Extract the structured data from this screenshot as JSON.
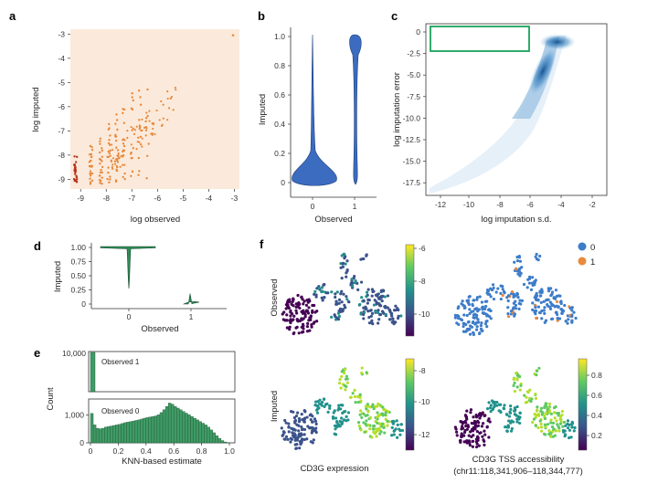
{
  "colors": {
    "scatter_bg": "#fbeadb",
    "scatter_point": "#e8893c",
    "scatter_dark": "#b8331f",
    "violin_fill": "#3b6cc0",
    "violin_edge": "#1f3f7a",
    "violin_green": "#2e8b57",
    "density": "#1f5f9e",
    "green_box": "#1aa35b",
    "hist_green": "#3f9b65",
    "hist_edge": "#1d4d31",
    "cell_blue": "#3d7cc9",
    "cell_orange": "#e8893c"
  },
  "panels": {
    "a": {
      "label": "a",
      "chart_data": {
        "type": "scatter",
        "xlabel": "log observed",
        "ylabel": "log imputed",
        "xlim": [
          -9.4,
          -2.8
        ],
        "ylim": [
          -9.4,
          -2.8
        ],
        "xticks": [
          "-9",
          "-8",
          "-7",
          "-6",
          "-5",
          "-4",
          "-3"
        ],
        "yticks": [
          "-3",
          "-4",
          "-5",
          "-6",
          "-7",
          "-8",
          "-9"
        ]
      }
    },
    "b": {
      "label": "b",
      "chart_data": {
        "type": "violin",
        "xlabel": "Observed",
        "ylabel": "Imputed",
        "categories": [
          "0",
          "1"
        ],
        "ylim": [
          -0.08,
          1.08
        ],
        "yticks": [
          "0",
          "0.2",
          "0.4",
          "0.6",
          "0.8",
          "1.0"
        ]
      }
    },
    "c": {
      "label": "c",
      "chart_data": {
        "type": "heatmap",
        "xlabel": "log imputation s.d.",
        "ylabel": "log imputation error",
        "xticks": [
          "-12",
          "-10",
          "-8",
          "-6",
          "-4",
          "-2"
        ],
        "yticks": [
          "0",
          "-2.5",
          "-5.0",
          "-7.5",
          "-10.0",
          "-12.5",
          "-15.0",
          "-17.5"
        ]
      }
    },
    "d": {
      "label": "d",
      "chart_data": {
        "type": "violin",
        "xlabel": "Observed",
        "ylabel": "Imputed",
        "categories": [
          "0",
          "1"
        ],
        "yticks": [
          "1.00",
          "0.75",
          "0.50",
          "0.25",
          "0"
        ]
      }
    },
    "e": {
      "label": "e",
      "chart_data": {
        "type": "bar",
        "xlabel": "KNN-based estimate",
        "ylabel": "Count",
        "xticks": [
          "0",
          "0.2",
          "0.4",
          "0.6",
          "0.8",
          "1.0"
        ],
        "top": {
          "title": "Observed 1",
          "ytick": "10,000"
        },
        "bottom": {
          "title": "Observed 0",
          "yticks": [
            "1,000",
            "0"
          ],
          "values": [
            1050,
            640,
            520,
            500,
            520,
            560,
            580,
            600,
            620,
            640,
            660,
            690,
            720,
            740,
            760,
            780,
            800,
            820,
            850,
            880,
            900,
            920,
            940,
            960,
            1000,
            1080,
            1180,
            1300,
            1420,
            1380,
            1300,
            1240,
            1180,
            1120,
            1060,
            1000,
            940,
            880,
            820,
            760,
            700,
            640,
            560,
            460,
            360,
            250,
            160,
            80,
            30,
            10
          ]
        }
      }
    },
    "f": {
      "label": "f",
      "row_labels": [
        "Observed",
        "Imputed"
      ],
      "col_labels": [
        "CD3G expression",
        "CD3G TSS accessibility",
        "(chr11:118,341,906–118,344,777)"
      ],
      "legend": [
        "0",
        "1"
      ],
      "colorbar_top_ticks": [
        "-6",
        "-8",
        "-10"
      ],
      "colorbar_bottom_ticks": [
        "-8",
        "-10",
        "-12"
      ],
      "colorbar_right_ticks": [
        "0.8",
        "0.6",
        "0.4",
        "0.2"
      ]
    }
  }
}
